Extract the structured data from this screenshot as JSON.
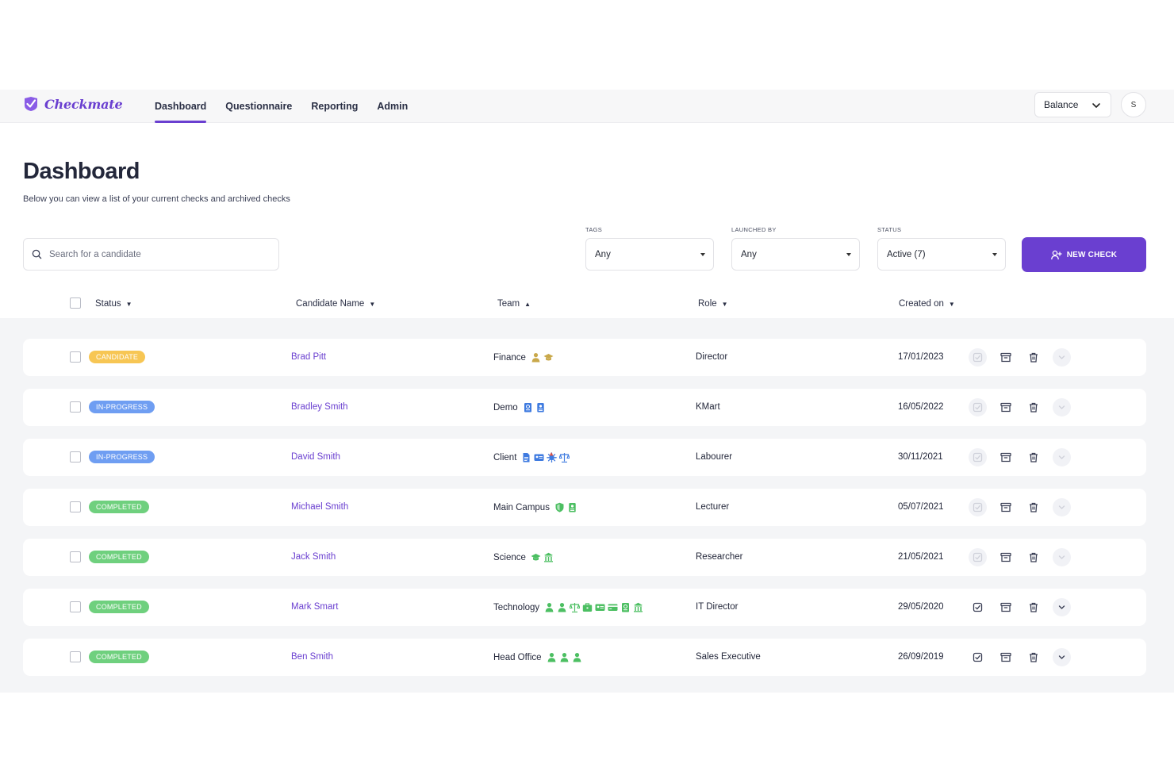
{
  "brand": {
    "name": "Checkmate",
    "accent": "#6a3fd0"
  },
  "nav": {
    "links": [
      "Dashboard",
      "Questionnaire",
      "Reporting",
      "Admin"
    ],
    "active": "Dashboard",
    "account_select": "Balance",
    "avatar_initial": "S"
  },
  "page": {
    "title": "Dashboard",
    "subtitle": "Below you can view a list of your current checks and archived checks"
  },
  "search": {
    "placeholder": "Search for a candidate"
  },
  "filters": {
    "tags": {
      "label": "TAGS",
      "value": "Any"
    },
    "launched_by": {
      "label": "LAUNCHED BY",
      "value": "Any"
    },
    "status": {
      "label": "STATUS",
      "value": "Active (7)"
    }
  },
  "new_check_label": "NEW CHECK",
  "columns": {
    "status": "Status",
    "candidate": "Candidate Name",
    "team": "Team",
    "role": "Role",
    "created": "Created on"
  },
  "status_colors": {
    "CANDIDATE": "#f7c654",
    "IN-PROGRESS": "#6f9ef2",
    "COMPLETED": "#6fd07e"
  },
  "rows": [
    {
      "status": "CANDIDATE",
      "name": "Brad Pitt",
      "team": "Finance",
      "team_icons": [
        "person-icon",
        "graduation-cap-icon"
      ],
      "icon_color": "#c9a84a",
      "role": "Director",
      "created": "17/01/2023",
      "actions_faded": true
    },
    {
      "status": "IN-PROGRESS",
      "name": "Bradley Smith",
      "team": "Demo",
      "team_icons": [
        "passport-icon",
        "id-badge-icon"
      ],
      "icon_color": "#3f7be0",
      "role": "KMart",
      "created": "16/05/2022",
      "actions_faded": true
    },
    {
      "status": "IN-PROGRESS",
      "name": "David Smith",
      "team": "Client",
      "team_icons": [
        "document-icon",
        "id-card-icon",
        "virus-icon",
        "scales-icon"
      ],
      "icon_color": "#3f7be0",
      "role": "Labourer",
      "created": "30/11/2021",
      "actions_faded": true
    },
    {
      "status": "COMPLETED",
      "name": "Michael Smith",
      "team": "Main Campus",
      "team_icons": [
        "shield-icon",
        "id-badge-icon"
      ],
      "icon_color": "#4cbf62",
      "role": "Lecturer",
      "created": "05/07/2021",
      "actions_faded": true
    },
    {
      "status": "COMPLETED",
      "name": "Jack Smith",
      "team": "Science",
      "team_icons": [
        "graduation-cap-icon",
        "building-icon"
      ],
      "icon_color": "#4cbf62",
      "role": "Researcher",
      "created": "21/05/2021",
      "actions_faded": true
    },
    {
      "status": "COMPLETED",
      "name": "Mark Smart",
      "team": "Technology",
      "team_icons": [
        "person-icon",
        "person-icon",
        "scales-icon",
        "briefcase-icon",
        "id-card-icon",
        "credit-card-icon",
        "passport-icon",
        "building-icon"
      ],
      "icon_color": "#4cbf62",
      "role": "IT Director",
      "created": "29/05/2020",
      "actions_faded": false
    },
    {
      "status": "COMPLETED",
      "name": "Ben Smith",
      "team": "Head Office",
      "team_icons": [
        "person-icon",
        "person-icon",
        "person-icon"
      ],
      "icon_color": "#4cbf62",
      "role": "Sales Executive",
      "created": "26/09/2019",
      "actions_faded": false
    }
  ]
}
